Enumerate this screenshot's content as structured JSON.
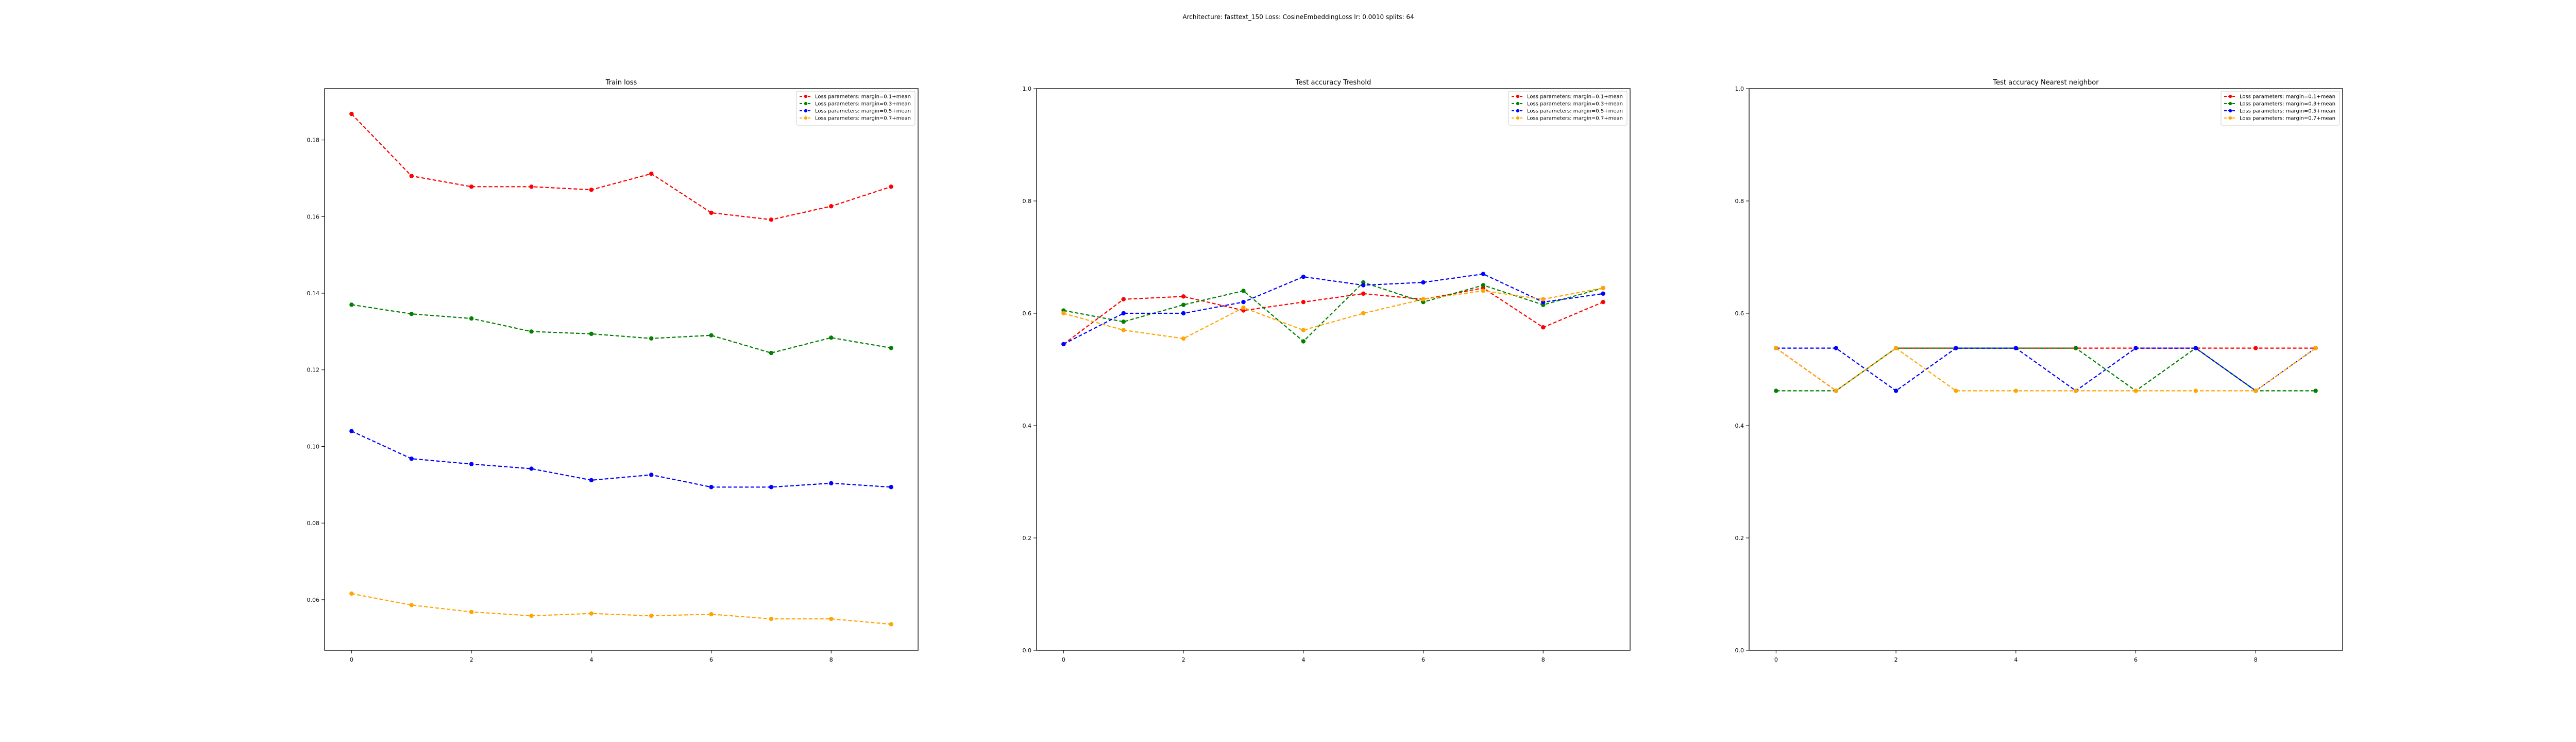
{
  "figure": {
    "suptitle": "Architecture: fasttext_150 Loss: CosineEmbeddingLoss lr: 0.0010 splits: 64"
  },
  "colors": {
    "red": "#ff0000",
    "green": "#008000",
    "blue": "#0000ff",
    "orange": "#ffa500"
  },
  "chart_data": [
    {
      "type": "line",
      "title": "Train loss",
      "xlabel": "",
      "ylabel": "",
      "x": [
        0,
        1,
        2,
        3,
        4,
        5,
        6,
        7,
        8,
        9
      ],
      "xticks": [
        0,
        2,
        4,
        6,
        8
      ],
      "xlim": [
        -0.45,
        9.45
      ],
      "ylim": [
        0.0468,
        0.1934
      ],
      "yticks": [
        0.06,
        0.08,
        0.1,
        0.12,
        0.14,
        0.16,
        0.18
      ],
      "ytick_labels": [
        "0.06",
        "0.08",
        "0.10",
        "0.12",
        "0.14",
        "0.16",
        "0.18"
      ],
      "grid": false,
      "legend_position": "upper-right",
      "series": [
        {
          "name": "Loss parameters: margin=0.1+mean",
          "color": "#ff0000",
          "linestyle": "dashed",
          "values": [
            0.1868,
            0.1706,
            0.1678,
            0.1678,
            0.167,
            0.1712,
            0.161,
            0.1592,
            0.1627,
            0.1678
          ]
        },
        {
          "name": "Loss parameters: margin=0.3+mean",
          "color": "#008000",
          "linestyle": "dashed",
          "values": [
            0.137,
            0.1346,
            0.1334,
            0.13,
            0.1294,
            0.1282,
            0.129,
            0.1244,
            0.1284,
            0.1257
          ]
        },
        {
          "name": "Loss parameters: margin=0.5+mean",
          "color": "#0000ff",
          "linestyle": "dashed",
          "values": [
            0.104,
            0.0968,
            0.0954,
            0.0942,
            0.0912,
            0.0926,
            0.0894,
            0.0894,
            0.0904,
            0.0894
          ]
        },
        {
          "name": "Loss parameters: margin=0.7+mean",
          "color": "#ffa500",
          "linestyle": "dashed",
          "values": [
            0.0616,
            0.0586,
            0.0568,
            0.0558,
            0.0564,
            0.0558,
            0.0562,
            0.055,
            0.055,
            0.0536
          ]
        }
      ]
    },
    {
      "type": "line",
      "title": "Test accuracy Treshold",
      "xlabel": "",
      "ylabel": "",
      "x": [
        0,
        1,
        2,
        3,
        4,
        5,
        6,
        7,
        8,
        9
      ],
      "xticks": [
        0,
        2,
        4,
        6,
        8
      ],
      "xlim": [
        -0.45,
        9.45
      ],
      "ylim": [
        0.0,
        1.0
      ],
      "yticks": [
        0.0,
        0.2,
        0.4,
        0.6,
        0.8,
        1.0
      ],
      "ytick_labels": [
        "0.0",
        "0.2",
        "0.4",
        "0.6",
        "0.8",
        "1.0"
      ],
      "grid": false,
      "legend_position": "upper-right",
      "series": [
        {
          "name": "Loss parameters: margin=0.1+mean",
          "color": "#ff0000",
          "linestyle": "dashed",
          "values": [
            0.545,
            0.625,
            0.63,
            0.605,
            0.62,
            0.635,
            0.625,
            0.645,
            0.575,
            0.62
          ]
        },
        {
          "name": "Loss parameters: margin=0.3+mean",
          "color": "#008000",
          "linestyle": "dashed",
          "values": [
            0.605,
            0.585,
            0.615,
            0.64,
            0.55,
            0.655,
            0.62,
            0.65,
            0.615,
            0.645
          ]
        },
        {
          "name": "Loss parameters: margin=0.5+mean",
          "color": "#0000ff",
          "linestyle": "dashed",
          "values": [
            0.545,
            0.6,
            0.6,
            0.62,
            0.665,
            0.65,
            0.655,
            0.67,
            0.62,
            0.635
          ]
        },
        {
          "name": "Loss parameters: margin=0.7+mean",
          "color": "#ffa500",
          "linestyle": "dashed",
          "values": [
            0.6,
            0.57,
            0.555,
            0.61,
            0.57,
            0.6,
            0.625,
            0.64,
            0.625,
            0.645
          ]
        }
      ]
    },
    {
      "type": "line",
      "title": "Test accuracy Nearest neighbor",
      "xlabel": "",
      "ylabel": "",
      "x": [
        0,
        1,
        2,
        3,
        4,
        5,
        6,
        7,
        8,
        9
      ],
      "xticks": [
        0,
        2,
        4,
        6,
        8
      ],
      "xlim": [
        -0.45,
        9.45
      ],
      "ylim": [
        0.0,
        1.0
      ],
      "yticks": [
        0.0,
        0.2,
        0.4,
        0.6,
        0.8,
        1.0
      ],
      "ytick_labels": [
        "0.0",
        "0.2",
        "0.4",
        "0.6",
        "0.8",
        "1.0"
      ],
      "grid": false,
      "legend_position": "upper-right",
      "series": [
        {
          "name": "Loss parameters: margin=0.1+mean",
          "color": "#ff0000",
          "linestyle": "dashed",
          "values": [
            0.538,
            0.462,
            0.538,
            0.538,
            0.538,
            0.538,
            0.538,
            0.538,
            0.538,
            0.538
          ]
        },
        {
          "name": "Loss parameters: margin=0.3+mean",
          "color": "#008000",
          "linestyle": "dashed",
          "values": [
            0.462,
            0.462,
            0.538,
            0.538,
            0.538,
            0.538,
            0.462,
            0.538,
            0.462,
            0.462
          ]
        },
        {
          "name": "Loss parameters: margin=0.5+mean",
          "color": "#0000ff",
          "linestyle": "dashed",
          "values": [
            0.538,
            0.538,
            0.462,
            0.538,
            0.538,
            0.462,
            0.538,
            0.538,
            0.462,
            0.538
          ]
        },
        {
          "name": "Loss parameters: margin=0.7+mean",
          "color": "#ffa500",
          "linestyle": "dashed",
          "values": [
            0.538,
            0.462,
            0.538,
            0.462,
            0.462,
            0.462,
            0.462,
            0.462,
            0.462,
            0.538
          ]
        }
      ]
    }
  ]
}
